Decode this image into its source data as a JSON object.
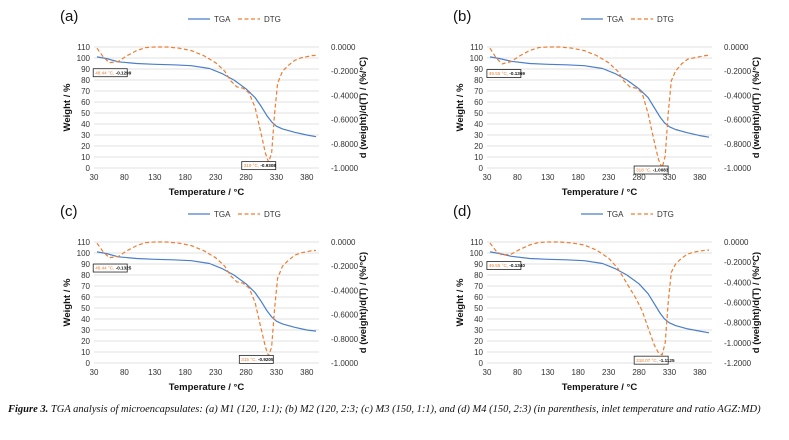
{
  "figure": {
    "caption_label": "Figure 3.",
    "caption_text": "TGA analysis of microencapsulates: (a) M1 (120, 1:1); (b) M2 (120, 2:3; (c) M3 (150, 1:1), and (d) M4 (150, 2:3) (in parenthesis, inlet temperature and ratio AGZ:MD)"
  },
  "colors": {
    "tga": "#4a7ecb",
    "dtg": "#ed7d31",
    "grid": "#d9d9d9"
  },
  "chart_data": [
    {
      "type": "line",
      "panel_label": "(a)",
      "xlabel": "Temperature / °C",
      "ylabel_left": "Weight / %",
      "ylabel_right": "d (weight)/d(T) / (%/°C)",
      "xlim": [
        30,
        400
      ],
      "x_ticks": [
        30,
        80,
        130,
        180,
        230,
        280,
        330,
        380
      ],
      "y_left_lim": [
        0,
        110
      ],
      "y_left_ticks": [
        0,
        10,
        20,
        30,
        40,
        50,
        60,
        70,
        80,
        90,
        100,
        110
      ],
      "y_right_lim": [
        -1.0,
        0.0
      ],
      "y_right_ticks": [
        "0.0000",
        "-0.2000",
        "-0.4000",
        "-0.6000",
        "-0.8000",
        "-1.0000"
      ],
      "legend": [
        "TGA",
        "DTG"
      ],
      "series": [
        {
          "name": "TGA",
          "axis": "left",
          "x": [
            35,
            50,
            70,
            100,
            130,
            160,
            190,
            220,
            240,
            260,
            280,
            295,
            305,
            315,
            322,
            330,
            340,
            360,
            380,
            395
          ],
          "y": [
            101,
            99.5,
            96.5,
            95,
            94.3,
            93.8,
            93,
            90.5,
            86,
            80,
            72,
            64,
            56,
            47,
            42,
            38,
            35.5,
            32.5,
            30,
            28.5
          ]
        },
        {
          "name": "DTG",
          "axis": "right",
          "x": [
            35,
            45,
            55,
            70,
            85,
            100,
            115,
            130,
            150,
            170,
            190,
            210,
            230,
            245,
            255,
            265,
            275,
            285,
            295,
            305,
            312,
            317,
            322,
            327,
            332,
            340,
            350,
            360,
            370,
            380,
            390,
            395
          ],
          "y": [
            -0.01,
            -0.08,
            -0.13,
            -0.12,
            -0.07,
            -0.03,
            -0.005,
            0.0,
            0.0,
            -0.01,
            -0.03,
            -0.07,
            -0.13,
            -0.2,
            -0.28,
            -0.33,
            -0.34,
            -0.38,
            -0.5,
            -0.72,
            -0.88,
            -0.95,
            -0.88,
            -0.55,
            -0.3,
            -0.2,
            -0.15,
            -0.11,
            -0.09,
            -0.08,
            -0.07,
            -0.07
          ]
        }
      ],
      "annotations": [
        {
          "text_a": "48.44 °C, ",
          "text_b": "-0.1299",
          "x": 48.44,
          "y": -0.1299,
          "side": "right"
        },
        {
          "text_a": "319 °C, ",
          "text_b": "-0.9308",
          "x": 319,
          "y": -0.9308,
          "side": "left"
        }
      ]
    },
    {
      "type": "line",
      "panel_label": "(b)",
      "xlabel": "Temperature / °C",
      "ylabel_left": "Weight / %",
      "ylabel_right": "d (weight)/d(T) / (%/°C)",
      "xlim": [
        30,
        400
      ],
      "x_ticks": [
        30,
        80,
        130,
        180,
        230,
        280,
        330,
        380
      ],
      "y_left_lim": [
        0,
        110
      ],
      "y_left_ticks": [
        0,
        10,
        20,
        30,
        40,
        50,
        60,
        70,
        80,
        90,
        100,
        110
      ],
      "y_right_lim": [
        -1.0,
        0.0
      ],
      "y_right_ticks": [
        "0.0000",
        "-0.2000",
        "-0.4000",
        "-0.6000",
        "-0.8000",
        "-1.0000"
      ],
      "legend": [
        "TGA",
        "DTG"
      ],
      "series": [
        {
          "name": "TGA",
          "axis": "left",
          "x": [
            35,
            50,
            70,
            100,
            130,
            160,
            190,
            220,
            240,
            260,
            280,
            295,
            305,
            315,
            322,
            330,
            340,
            360,
            380,
            395
          ],
          "y": [
            101,
            99.5,
            97,
            95,
            94.3,
            93.8,
            93,
            90.5,
            86,
            80,
            72,
            64,
            55,
            46,
            41,
            37.5,
            35,
            32,
            29.5,
            28
          ]
        },
        {
          "name": "DTG",
          "axis": "right",
          "x": [
            35,
            45,
            55,
            70,
            85,
            100,
            115,
            130,
            150,
            170,
            190,
            210,
            230,
            245,
            255,
            265,
            275,
            285,
            295,
            305,
            312,
            318,
            323,
            328,
            333,
            340,
            350,
            360,
            370,
            380,
            390,
            395
          ],
          "y": [
            -0.01,
            -0.09,
            -0.14,
            -0.12,
            -0.07,
            -0.03,
            -0.005,
            0.0,
            0.0,
            -0.01,
            -0.03,
            -0.07,
            -0.13,
            -0.2,
            -0.28,
            -0.33,
            -0.34,
            -0.38,
            -0.55,
            -0.78,
            -0.93,
            -1.0,
            -0.9,
            -0.55,
            -0.28,
            -0.2,
            -0.14,
            -0.1,
            -0.09,
            -0.08,
            -0.07,
            -0.07
          ]
        }
      ],
      "annotations": [
        {
          "text_a": "49.55 °C, ",
          "text_b": "-0.1369",
          "x": 49.55,
          "y": -0.1369,
          "side": "right"
        },
        {
          "text_a": "318 °C, ",
          "text_b": "-1.0083",
          "x": 318,
          "y": -1.0083,
          "side": "left"
        }
      ]
    },
    {
      "type": "line",
      "panel_label": "(c)",
      "xlabel": "Temperature / °C",
      "ylabel_left": "Weight / %",
      "ylabel_right": "d (weight)/d(T) / (%/°C)",
      "xlim": [
        30,
        400
      ],
      "x_ticks": [
        30,
        80,
        130,
        180,
        230,
        280,
        330,
        380
      ],
      "y_left_lim": [
        0,
        110
      ],
      "y_left_ticks": [
        0,
        10,
        20,
        30,
        40,
        50,
        60,
        70,
        80,
        90,
        100,
        110
      ],
      "y_right_lim": [
        -1.0,
        0.0
      ],
      "y_right_ticks": [
        "0.0000",
        "-0.2000",
        "-0.4000",
        "-0.6000",
        "-0.8000",
        "-1.0000"
      ],
      "legend": [
        "TGA",
        "DTG"
      ],
      "series": [
        {
          "name": "TGA",
          "axis": "left",
          "x": [
            35,
            50,
            70,
            100,
            130,
            160,
            190,
            220,
            240,
            260,
            280,
            295,
            305,
            315,
            322,
            330,
            340,
            360,
            380,
            395
          ],
          "y": [
            101,
            99.5,
            96.5,
            95,
            94.3,
            93.8,
            93,
            90.5,
            86,
            80,
            72,
            64,
            56,
            47,
            42,
            38,
            35.5,
            32.5,
            30,
            29
          ]
        },
        {
          "name": "DTG",
          "axis": "right",
          "x": [
            35,
            45,
            55,
            70,
            85,
            100,
            115,
            130,
            150,
            170,
            190,
            210,
            230,
            245,
            255,
            265,
            275,
            285,
            295,
            305,
            312,
            317,
            322,
            327,
            332,
            340,
            350,
            360,
            370,
            380,
            390,
            395
          ],
          "y": [
            -0.01,
            -0.08,
            -0.13,
            -0.12,
            -0.07,
            -0.03,
            -0.005,
            0.0,
            0.0,
            -0.01,
            -0.03,
            -0.07,
            -0.13,
            -0.2,
            -0.28,
            -0.33,
            -0.34,
            -0.38,
            -0.5,
            -0.72,
            -0.87,
            -0.94,
            -0.87,
            -0.55,
            -0.3,
            -0.2,
            -0.15,
            -0.11,
            -0.09,
            -0.08,
            -0.07,
            -0.07
          ]
        }
      ],
      "annotations": [
        {
          "text_a": "48.44 °C, ",
          "text_b": "-0.1325",
          "x": 48.44,
          "y": -0.1325,
          "side": "right"
        },
        {
          "text_a": "315 °C, ",
          "text_b": "-0.9205",
          "x": 315,
          "y": -0.9205,
          "side": "left"
        }
      ]
    },
    {
      "type": "line",
      "panel_label": "(d)",
      "xlabel": "Temperature / °C",
      "ylabel_left": "Weight / %",
      "ylabel_right": "d (weight)/d(T) / (%/°C)",
      "xlim": [
        30,
        400
      ],
      "x_ticks": [
        30,
        80,
        130,
        180,
        230,
        280,
        330,
        380
      ],
      "y_left_lim": [
        0,
        110
      ],
      "y_left_ticks": [
        0,
        10,
        20,
        30,
        40,
        50,
        60,
        70,
        80,
        90,
        100,
        110
      ],
      "y_right_lim": [
        -1.2,
        0.0
      ],
      "y_right_ticks": [
        "0.0000",
        "-0.2000",
        "-0.4000",
        "-0.6000",
        "-0.8000",
        "-1.0000",
        "-1.2000"
      ],
      "legend": [
        "TGA",
        "DTG"
      ],
      "series": [
        {
          "name": "TGA",
          "axis": "left",
          "x": [
            35,
            50,
            70,
            100,
            130,
            160,
            190,
            220,
            240,
            260,
            280,
            295,
            305,
            315,
            322,
            330,
            340,
            360,
            380,
            395
          ],
          "y": [
            101,
            99.5,
            97,
            95,
            94.3,
            93.8,
            93,
            90.5,
            86,
            80,
            72,
            63,
            54,
            45,
            40,
            36.5,
            34,
            31,
            29,
            27.5
          ]
        },
        {
          "name": "DTG",
          "axis": "right",
          "x": [
            35,
            45,
            55,
            70,
            85,
            100,
            115,
            130,
            150,
            170,
            190,
            210,
            230,
            245,
            255,
            265,
            275,
            285,
            295,
            305,
            312,
            318,
            323,
            328,
            333,
            340,
            350,
            360,
            370,
            380,
            390,
            395
          ],
          "y": [
            -0.01,
            -0.09,
            -0.13,
            -0.12,
            -0.07,
            -0.03,
            -0.005,
            0.0,
            0.0,
            -0.01,
            -0.03,
            -0.08,
            -0.16,
            -0.26,
            -0.36,
            -0.46,
            -0.56,
            -0.68,
            -0.85,
            -1.02,
            -1.1,
            -1.12,
            -1.0,
            -0.6,
            -0.3,
            -0.22,
            -0.16,
            -0.12,
            -0.1,
            -0.09,
            -0.08,
            -0.08
          ]
        }
      ],
      "annotations": [
        {
          "text_a": "49.55 °C, ",
          "text_b": "-0.1340",
          "x": 49.55,
          "y": -0.134,
          "side": "right"
        },
        {
          "text_a": "318.07 °C, ",
          "text_b": "-1.1125",
          "x": 318.07,
          "y": -1.1125,
          "side": "left"
        }
      ]
    }
  ]
}
